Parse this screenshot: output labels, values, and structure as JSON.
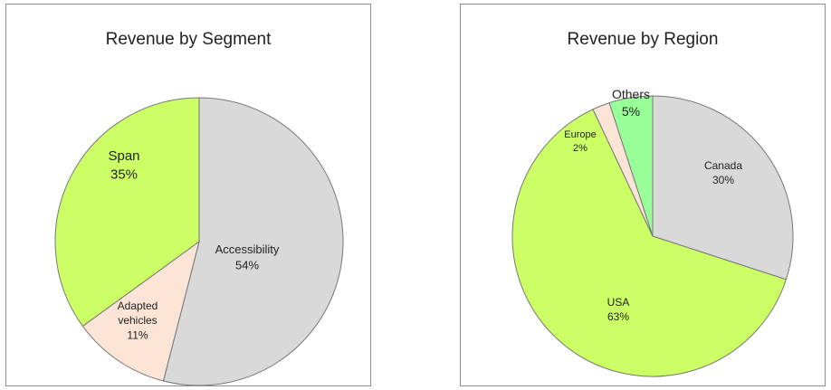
{
  "chart_data": [
    {
      "type": "pie",
      "title": "Revenue by Segment",
      "start_angle_deg": 0,
      "direction": "clockwise",
      "slices": [
        {
          "name": "Accessibility",
          "value": 54,
          "label": "Accessibility",
          "pct": "54%",
          "color": "#d9d9d9"
        },
        {
          "name": "Adapted vehicles",
          "value": 11,
          "label": "Adapted vehicles",
          "pct": "11%",
          "color": "#fce4d6"
        },
        {
          "name": "Span",
          "value": 35,
          "label": "Span",
          "pct": "35%",
          "color": "#ccff66"
        }
      ]
    },
    {
      "type": "pie",
      "title": "Revenue by Region",
      "start_angle_deg": 0,
      "direction": "clockwise",
      "slices": [
        {
          "name": "Canada",
          "value": 30,
          "label": "Canada",
          "pct": "30%",
          "color": "#d9d9d9"
        },
        {
          "name": "USA",
          "value": 63,
          "label": "USA",
          "pct": "63%",
          "color": "#ccff66"
        },
        {
          "name": "Europe",
          "value": 2,
          "label": "Europe",
          "pct": "2%",
          "color": "#fce4d6"
        },
        {
          "name": "Others",
          "value": 5,
          "label": "Others",
          "pct": "5%",
          "color": "#99ff99"
        }
      ]
    }
  ]
}
